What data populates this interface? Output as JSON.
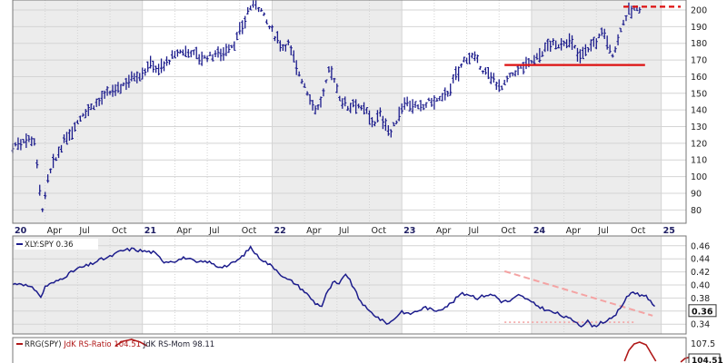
{
  "chart_data": [
    {
      "type": "ohlc-bar",
      "title": "",
      "ylim": [
        72,
        206
      ],
      "y_ticks": [
        80,
        90,
        100,
        110,
        120,
        130,
        140,
        150,
        160,
        170,
        180,
        190,
        200
      ],
      "x_tick_labels": [
        {
          "t": 0.0,
          "label": "20",
          "bold": true
        },
        {
          "t": 3.0,
          "label": "Apr"
        },
        {
          "t": 6.0,
          "label": "Jul"
        },
        {
          "t": 9.0,
          "label": "Oct"
        },
        {
          "t": 12.0,
          "label": "21",
          "bold": true
        },
        {
          "t": 15.0,
          "label": "Apr"
        },
        {
          "t": 18.0,
          "label": "Jul"
        },
        {
          "t": 21.0,
          "label": "Oct"
        },
        {
          "t": 24.0,
          "label": "22",
          "bold": true
        },
        {
          "t": 27.0,
          "label": "Apr"
        },
        {
          "t": 30.0,
          "label": "Jul"
        },
        {
          "t": 33.0,
          "label": "Oct"
        },
        {
          "t": 36.0,
          "label": "23",
          "bold": true
        },
        {
          "t": 39.0,
          "label": "Apr"
        },
        {
          "t": 42.0,
          "label": "Jul"
        },
        {
          "t": 45.0,
          "label": "Oct"
        },
        {
          "t": 48.0,
          "label": "24",
          "bold": true
        },
        {
          "t": 51.0,
          "label": "Apr"
        },
        {
          "t": 54.0,
          "label": "Jul"
        },
        {
          "t": 57.0,
          "label": "Oct"
        },
        {
          "t": 60.0,
          "label": "25",
          "bold": true
        }
      ],
      "price_keypoints": [
        [
          0.0,
          118
        ],
        [
          1.3,
          123
        ],
        [
          2.0,
          122
        ],
        [
          2.5,
          92
        ],
        [
          2.8,
          79
        ],
        [
          3.3,
          100
        ],
        [
          4.5,
          118
        ],
        [
          5.5,
          128
        ],
        [
          6.5,
          138
        ],
        [
          7.5,
          143
        ],
        [
          8.5,
          148
        ],
        [
          10.0,
          154
        ],
        [
          11.0,
          160
        ],
        [
          12.0,
          162
        ],
        [
          12.8,
          168
        ],
        [
          13.5,
          164
        ],
        [
          14.5,
          170
        ],
        [
          15.5,
          175
        ],
        [
          16.5,
          175
        ],
        [
          17.5,
          171
        ],
        [
          18.5,
          173
        ],
        [
          19.5,
          175
        ],
        [
          20.5,
          180
        ],
        [
          21.3,
          190
        ],
        [
          21.8,
          200
        ],
        [
          22.4,
          205
        ],
        [
          23.0,
          200
        ],
        [
          23.7,
          190
        ],
        [
          24.5,
          182
        ],
        [
          25.0,
          178
        ],
        [
          25.5,
          180
        ],
        [
          26.3,
          165
        ],
        [
          27.0,
          155
        ],
        [
          27.6,
          145
        ],
        [
          28.2,
          140
        ],
        [
          28.8,
          150
        ],
        [
          29.3,
          165
        ],
        [
          29.6,
          162
        ],
        [
          30.2,
          148
        ],
        [
          31.0,
          142
        ],
        [
          31.7,
          145
        ],
        [
          32.3,
          140
        ],
        [
          32.8,
          138
        ],
        [
          33.4,
          132
        ],
        [
          34.0,
          137
        ],
        [
          34.6,
          130
        ],
        [
          35.0,
          126
        ],
        [
          35.6,
          135
        ],
        [
          36.3,
          146
        ],
        [
          37.0,
          143
        ],
        [
          37.6,
          140
        ],
        [
          38.5,
          145
        ],
        [
          39.5,
          146
        ],
        [
          40.2,
          150
        ],
        [
          41.0,
          160
        ],
        [
          41.6,
          168
        ],
        [
          42.2,
          173
        ],
        [
          42.8,
          170
        ],
        [
          43.4,
          165
        ],
        [
          44.0,
          160
        ],
        [
          44.6,
          158
        ],
        [
          45.2,
          153
        ],
        [
          45.8,
          158
        ],
        [
          46.5,
          163
        ],
        [
          47.2,
          166
        ],
        [
          48.2,
          170
        ],
        [
          49.0,
          175
        ],
        [
          49.8,
          180
        ],
        [
          50.3,
          178
        ],
        [
          50.8,
          180
        ],
        [
          51.4,
          182
        ],
        [
          51.9,
          178
        ],
        [
          52.4,
          172
        ],
        [
          52.9,
          176
        ],
        [
          53.5,
          178
        ],
        [
          54.1,
          182
        ],
        [
          54.6,
          188
        ],
        [
          55.0,
          182
        ],
        [
          55.4,
          172
        ],
        [
          55.8,
          178
        ],
        [
          56.3,
          190
        ],
        [
          56.8,
          197
        ],
        [
          57.3,
          200
        ],
        [
          58.2,
          201
        ]
      ],
      "annotations": [
        {
          "kind": "solid-line",
          "x_range": [
            45.5,
            58.5
          ],
          "y": 167,
          "color": "#dd1111"
        },
        {
          "kind": "dashed-line",
          "x_range": [
            56.5,
            61.8
          ],
          "y": 202,
          "color": "#dd1111"
        }
      ],
      "colors": {
        "bars": "#1c1c8c",
        "shade": "#ececec",
        "grid": "#d4d4d4"
      }
    },
    {
      "type": "line",
      "legend": "XLY:SPY 0.36",
      "last_value": "0.36",
      "ylim": [
        0.325,
        0.475
      ],
      "y_ticks": [
        "0.34",
        "0.36",
        "0.38",
        "0.40",
        "0.42",
        "0.44",
        "0.46"
      ],
      "series": [
        {
          "name": "XLY:SPY",
          "keypoints": [
            [
              0.0,
              0.401
            ],
            [
              0.8,
              0.403
            ],
            [
              1.6,
              0.396
            ],
            [
              2.2,
              0.392
            ],
            [
              2.6,
              0.38
            ],
            [
              3.0,
              0.398
            ],
            [
              4.0,
              0.405
            ],
            [
              5.0,
              0.415
            ],
            [
              6.0,
              0.425
            ],
            [
              7.0,
              0.43
            ],
            [
              8.0,
              0.438
            ],
            [
              9.0,
              0.443
            ],
            [
              10.0,
              0.452
            ],
            [
              11.0,
              0.455
            ],
            [
              12.0,
              0.452
            ],
            [
              13.0,
              0.45
            ],
            [
              14.0,
              0.436
            ],
            [
              15.0,
              0.437
            ],
            [
              16.0,
              0.442
            ],
            [
              17.0,
              0.434
            ],
            [
              18.0,
              0.436
            ],
            [
              19.0,
              0.428
            ],
            [
              20.0,
              0.43
            ],
            [
              21.0,
              0.44
            ],
            [
              21.6,
              0.45
            ],
            [
              22.0,
              0.458
            ],
            [
              22.6,
              0.445
            ],
            [
              23.4,
              0.435
            ],
            [
              24.3,
              0.425
            ],
            [
              25.2,
              0.41
            ],
            [
              26.0,
              0.404
            ],
            [
              27.0,
              0.39
            ],
            [
              28.0,
              0.372
            ],
            [
              28.6,
              0.368
            ],
            [
              29.0,
              0.385
            ],
            [
              29.7,
              0.405
            ],
            [
              30.2,
              0.4
            ],
            [
              30.8,
              0.418
            ],
            [
              31.4,
              0.4
            ],
            [
              32.0,
              0.38
            ],
            [
              32.8,
              0.362
            ],
            [
              33.4,
              0.355
            ],
            [
              34.2,
              0.345
            ],
            [
              34.8,
              0.341
            ],
            [
              35.4,
              0.35
            ],
            [
              36.0,
              0.36
            ],
            [
              36.6,
              0.355
            ],
            [
              37.4,
              0.36
            ],
            [
              38.2,
              0.366
            ],
            [
              39.0,
              0.36
            ],
            [
              39.8,
              0.365
            ],
            [
              40.6,
              0.372
            ],
            [
              41.4,
              0.386
            ],
            [
              42.2,
              0.386
            ],
            [
              43.0,
              0.38
            ],
            [
              43.8,
              0.385
            ],
            [
              44.6,
              0.384
            ],
            [
              45.2,
              0.375
            ],
            [
              46.0,
              0.375
            ],
            [
              46.8,
              0.384
            ],
            [
              47.4,
              0.38
            ],
            [
              48.0,
              0.373
            ],
            [
              48.8,
              0.366
            ],
            [
              49.6,
              0.36
            ],
            [
              50.4,
              0.356
            ],
            [
              51.2,
              0.35
            ],
            [
              52.0,
              0.345
            ],
            [
              52.6,
              0.338
            ],
            [
              53.2,
              0.344
            ],
            [
              53.8,
              0.336
            ],
            [
              54.4,
              0.343
            ],
            [
              55.0,
              0.345
            ],
            [
              55.6,
              0.35
            ],
            [
              56.2,
              0.365
            ],
            [
              56.8,
              0.38
            ],
            [
              57.3,
              0.39
            ],
            [
              57.8,
              0.387
            ],
            [
              58.2,
              0.383
            ],
            [
              58.6,
              0.385
            ],
            [
              59.1,
              0.372
            ],
            [
              59.6,
              0.36
            ]
          ]
        }
      ],
      "annotations": [
        {
          "kind": "dashed-trendline",
          "from": [
            45.5,
            0.421
          ],
          "to": [
            59.2,
            0.353
          ],
          "color": "#f4a3a3"
        },
        {
          "kind": "dotted-support",
          "x_range": [
            45.5,
            57.5
          ],
          "y": 0.343,
          "color": "#f4a3a3"
        }
      ],
      "colors": {
        "line": "#1c1c8c",
        "shade": "#ececec",
        "grid": "#d4d4d4"
      }
    },
    {
      "type": "line",
      "legend_parts": [
        {
          "text": "RRG(SPY)",
          "color": "#222222"
        },
        {
          "text": "JdK RS-Ratio 104.51",
          "color": "#b01818"
        },
        {
          "text": "JdK RS-Mom 98.11",
          "color": "#222233"
        }
      ],
      "y_ticks": [
        "107.5"
      ],
      "last_value": "104.51",
      "series": [
        {
          "name": "JdK RS-Ratio",
          "keypoints": [
            [
              9.5,
              381
            ],
            [
              10.2,
              376
            ],
            [
              11.0,
              374
            ],
            [
              11.8,
              377
            ],
            [
              12.4,
              381
            ]
          ]
        },
        {
          "name": "JdK RS-Ratio",
          "keypoints": [
            [
              56.6,
              398
            ],
            [
              57.0,
              386
            ],
            [
              57.5,
              379
            ],
            [
              58.0,
              377
            ],
            [
              58.6,
              380
            ],
            [
              59.1,
              390
            ],
            [
              59.5,
              398
            ]
          ]
        },
        {
          "name": "JdK RS-Ratio",
          "keypoints": [
            [
              61.8,
              399
            ],
            [
              62.2,
              395
            ],
            [
              62.8,
              393
            ]
          ]
        }
      ],
      "colors": {
        "line": "#b01818"
      }
    }
  ]
}
